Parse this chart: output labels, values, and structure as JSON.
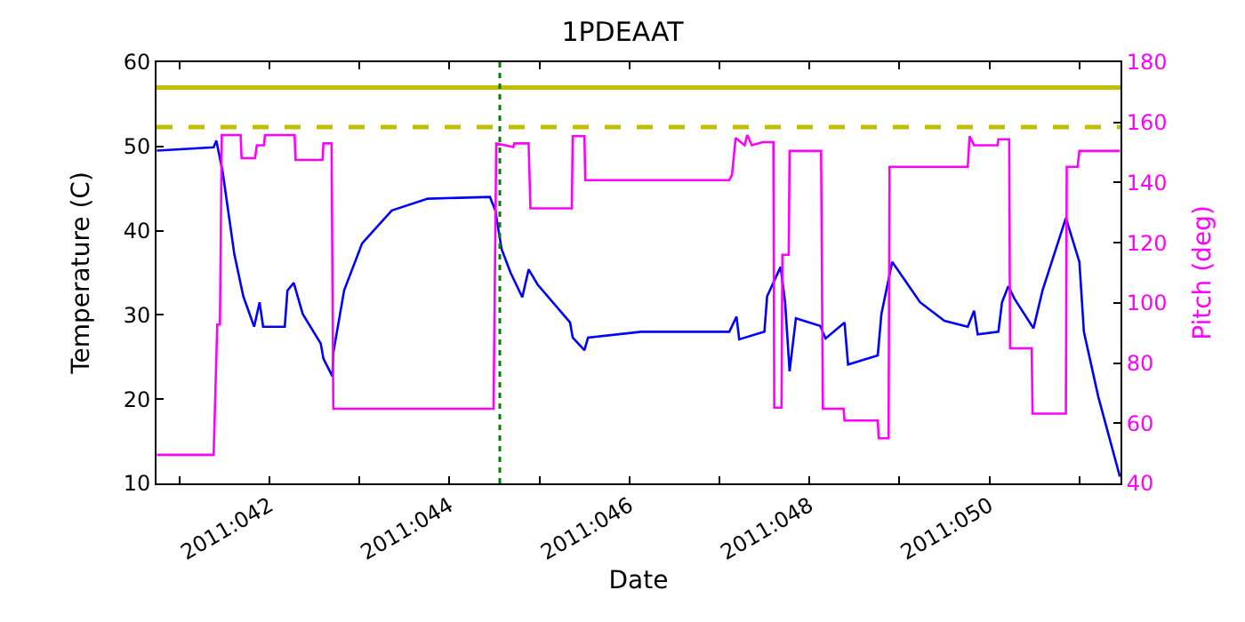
{
  "chart_data": {
    "type": "line",
    "title": "1PDEAAT",
    "xlabel": "Date",
    "ylabel": "Temperature (C)",
    "y2label": "Pitch (deg)",
    "xlim": [
      "2011-02-09T17:53",
      "2011-02-20T10:58"
    ],
    "xticks": [
      {
        "value": "2011-02-10",
        "label": null
      },
      {
        "value": "2011-02-11",
        "label": "2011:042"
      },
      {
        "value": "2011-02-12",
        "label": null
      },
      {
        "value": "2011-02-13",
        "label": "2011:044"
      },
      {
        "value": "2011-02-14",
        "label": null
      },
      {
        "value": "2011-02-15",
        "label": "2011:046"
      },
      {
        "value": "2011-02-16",
        "label": null
      },
      {
        "value": "2011-02-17",
        "label": "2011:048"
      },
      {
        "value": "2011-02-18",
        "label": null
      },
      {
        "value": "2011-02-19",
        "label": "2011:050"
      },
      {
        "value": "2011-02-20",
        "label": null
      }
    ],
    "ylim": [
      10,
      60
    ],
    "yticks": [
      10,
      20,
      30,
      40,
      50,
      60
    ],
    "y2lim": [
      40,
      180
    ],
    "y2ticks": [
      40,
      60,
      80,
      100,
      120,
      140,
      160,
      180
    ],
    "marker": "none",
    "line_style": "solid",
    "series": [
      {
        "color": "#0000ff",
        "x": [
          "2011-02-09T18:00",
          "2011-02-10T09:07",
          "2011-02-10T09:50",
          "2011-02-10T11:31",
          "2011-02-10T14:38",
          "2011-02-10T17:02",
          "2011-02-10T19:55",
          "2011-02-10T21:22",
          "2011-02-10T22:19",
          "2011-02-11T04:05",
          "2011-02-11T04:48",
          "2011-02-11T06:29",
          "2011-02-11T08:53",
          "2011-02-11T13:41",
          "2011-02-11T14:24",
          "2011-02-11T16:48",
          "2011-02-11T17:02",
          "2011-02-11T19:55",
          "2011-02-12T00:43",
          "2011-02-12T08:38",
          "2011-02-12T18:14",
          "2011-02-13T10:48",
          "2011-02-13T12:14",
          "2011-02-13T13:55",
          "2011-02-13T16:19",
          "2011-02-13T19:26",
          "2011-02-13T21:07",
          "2011-02-13T23:31",
          "2011-02-14T08:10",
          "2011-02-14T08:53",
          "2011-02-14T12:00",
          "2011-02-14T12:58",
          "2011-02-15T03:07",
          "2011-02-16T02:38",
          "2011-02-16T04:34",
          "2011-02-16T05:17",
          "2011-02-16T12:00",
          "2011-02-16T12:43",
          "2011-02-16T16:19",
          "2011-02-16T17:31",
          "2011-02-16T18:43",
          "2011-02-16T20:24",
          "2011-02-17T02:53",
          "2011-02-17T04:19",
          "2011-02-17T09:22",
          "2011-02-17T10:19",
          "2011-02-17T18:14",
          "2011-02-17T19:12",
          "2011-02-17T22:05",
          "2011-02-18T05:31",
          "2011-02-18T12:00",
          "2011-02-18T18:14",
          "2011-02-18T19:55",
          "2011-02-18T20:53",
          "2011-02-19T02:24",
          "2011-02-19T03:22",
          "2011-02-19T05:02",
          "2011-02-19T06:43",
          "2011-02-19T11:46",
          "2011-02-19T14:10",
          "2011-02-19T20:24",
          "2011-02-20T00:00",
          "2011-02-20T01:12",
          "2011-02-20T05:02",
          "2011-02-20T10:48"
        ],
        "values": [
          49.5,
          49.9,
          50.7,
          47.0,
          37.2,
          32.2,
          28.6,
          31.5,
          28.6,
          28.6,
          32.9,
          33.8,
          30.1,
          26.6,
          24.8,
          22.7,
          25.5,
          32.9,
          38.5,
          42.4,
          43.8,
          44.0,
          42.4,
          37.8,
          35.0,
          32.1,
          35.4,
          33.6,
          29.1,
          27.3,
          25.8,
          27.3,
          28.0,
          28.0,
          29.8,
          27.1,
          28.0,
          32.2,
          35.7,
          31.5,
          23.3,
          29.6,
          28.7,
          27.2,
          29.1,
          24.1,
          25.2,
          30.1,
          36.3,
          31.5,
          29.3,
          28.6,
          30.5,
          27.7,
          28.0,
          31.5,
          33.4,
          31.9,
          28.4,
          32.9,
          41.5,
          36.3,
          28.0,
          20.3,
          10.8
        ]
      },
      {
        "color": "#ff00ff",
        "axis": "y2",
        "x": [
          "2011-02-09T18:00",
          "2011-02-10T09:07",
          "2011-02-10T10:05",
          "2011-02-10T10:48",
          "2011-02-10T11:17",
          "2011-02-10T16:19",
          "2011-02-10T16:34",
          "2011-02-10T20:10",
          "2011-02-10T20:38",
          "2011-02-10T22:34",
          "2011-02-10T22:48",
          "2011-02-11T06:43",
          "2011-02-11T06:58",
          "2011-02-11T14:10",
          "2011-02-11T14:24",
          "2011-02-11T16:34",
          "2011-02-11T17:02",
          "2011-02-13T11:46",
          "2011-02-13T12:29",
          "2011-02-13T17:02",
          "2011-02-13T17:17",
          "2011-02-13T21:07",
          "2011-02-13T21:36",
          "2011-02-14T08:38",
          "2011-02-14T08:53",
          "2011-02-14T12:00",
          "2011-02-14T12:14",
          "2011-02-16T02:38",
          "2011-02-16T03:22",
          "2011-02-16T04:19",
          "2011-02-16T06:43",
          "2011-02-16T07:26",
          "2011-02-16T08:38",
          "2011-02-16T11:31",
          "2011-02-16T14:24",
          "2011-02-16T14:38",
          "2011-02-16T16:34",
          "2011-02-16T16:48",
          "2011-02-16T18:29",
          "2011-02-16T18:43",
          "2011-02-17T03:07",
          "2011-02-17T03:36",
          "2011-02-17T09:07",
          "2011-02-17T09:22",
          "2011-02-17T18:14",
          "2011-02-17T18:29",
          "2011-02-17T21:07",
          "2011-02-17T21:22",
          "2011-02-18T18:14",
          "2011-02-18T18:43",
          "2011-02-18T19:55",
          "2011-02-19T02:10",
          "2011-02-19T02:24",
          "2011-02-19T05:17",
          "2011-02-19T05:31",
          "2011-02-19T11:17",
          "2011-02-19T11:31",
          "2011-02-19T20:24",
          "2011-02-19T20:38",
          "2011-02-19T23:31",
          "2011-02-20T00:00",
          "2011-02-20T10:48"
        ],
        "values": [
          49.5,
          49.5,
          92.8,
          92.8,
          155.8,
          155.8,
          148.1,
          148.1,
          152.4,
          152.4,
          155.8,
          155.8,
          147.5,
          147.5,
          153.0,
          153.0,
          64.8,
          64.8,
          153.0,
          151.8,
          153.0,
          153.0,
          131.4,
          131.4,
          155.4,
          155.4,
          140.8,
          140.8,
          142.6,
          154.8,
          152.4,
          155.8,
          152.4,
          153.4,
          153.4,
          65.2,
          65.2,
          116.0,
          116.0,
          150.5,
          150.5,
          64.8,
          64.8,
          60.9,
          60.9,
          55.0,
          55.0,
          145.2,
          145.2,
          155.4,
          152.4,
          152.4,
          154.4,
          154.4,
          84.9,
          84.9,
          63.2,
          63.2,
          145.2,
          145.2,
          150.5,
          150.5
        ]
      }
    ],
    "ref_lines": [
      {
        "axis": "y",
        "value": 57,
        "color": "#bfbf00",
        "line_style": "solid"
      },
      {
        "axis": "y",
        "value": 52.3,
        "color": "#bfbf00",
        "line_style": "dashed"
      },
      {
        "axis": "x",
        "value": "2011-02-13T13:26",
        "color": "#008000",
        "line_style": "dotted"
      }
    ]
  }
}
